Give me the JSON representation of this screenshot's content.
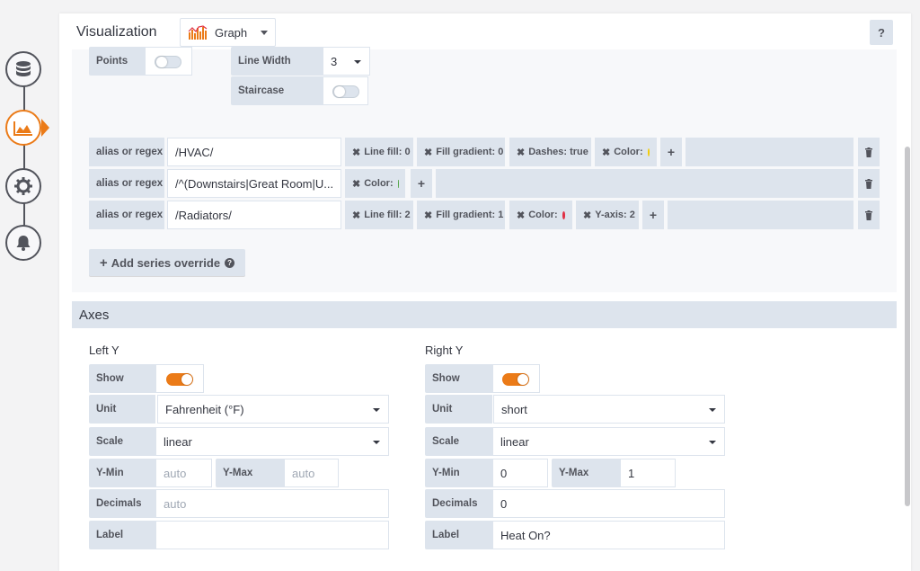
{
  "rail": {
    "items": [
      {
        "name": "queries",
        "icon": "database-icon"
      },
      {
        "name": "visualization",
        "icon": "area-chart-icon",
        "active": true
      },
      {
        "name": "general",
        "icon": "gear-icon"
      },
      {
        "name": "alert",
        "icon": "bell-icon"
      }
    ]
  },
  "header": {
    "title": "Visualization",
    "viz_select": "Graph",
    "help_label": "?"
  },
  "draw_options": {
    "points_label": "Points",
    "points_on": false,
    "line_width_label": "Line Width",
    "line_width_value": "3",
    "staircase_label": "Staircase",
    "staircase_on": false
  },
  "overrides": [
    {
      "label": "alias or regex",
      "value": "/HVAC/",
      "tags": [
        {
          "text": "Line fill: 0"
        },
        {
          "text": "Fill gradient: 0"
        },
        {
          "text": "Dashes: true"
        },
        {
          "text": "Color:",
          "dot": "#f2cc0c"
        }
      ]
    },
    {
      "label": "alias or regex",
      "value": "/^(Downstairs|Great Room|U...",
      "tags": [
        {
          "text": "Color:",
          "dot": "#56a64b"
        }
      ]
    },
    {
      "label": "alias or regex",
      "value": "/Radiators/",
      "tags": [
        {
          "text": "Line fill: 2"
        },
        {
          "text": "Fill gradient: 1"
        },
        {
          "text": "Color:",
          "dot": "#e02f44"
        },
        {
          "text": "Y-axis: 2"
        }
      ]
    }
  ],
  "add_override_label": "Add series override",
  "axes": {
    "title": "Axes",
    "left": {
      "title": "Left Y",
      "show_label": "Show",
      "show_on": true,
      "unit_label": "Unit",
      "unit_value": "Fahrenheit (°F)",
      "scale_label": "Scale",
      "scale_value": "linear",
      "ymin_label": "Y-Min",
      "ymin_placeholder": "auto",
      "ymax_label": "Y-Max",
      "ymax_placeholder": "auto",
      "decimals_label": "Decimals",
      "decimals_placeholder": "auto",
      "label_label": "Label",
      "label_value": ""
    },
    "right": {
      "title": "Right Y",
      "show_label": "Show",
      "show_on": true,
      "unit_label": "Unit",
      "unit_value": "short",
      "scale_label": "Scale",
      "scale_value": "linear",
      "ymin_label": "Y-Min",
      "ymin_value": "0",
      "ymax_label": "Y-Max",
      "ymax_value": "1",
      "decimals_label": "Decimals",
      "decimals_value": "0",
      "label_label": "Label",
      "label_value": "Heat On?"
    }
  },
  "colors": {
    "accent": "#eb7b18",
    "label_bg": "#dde4ed"
  }
}
